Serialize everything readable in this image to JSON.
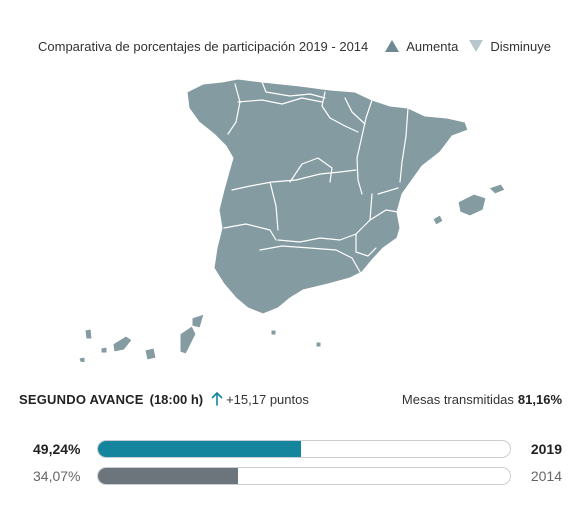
{
  "legend": {
    "title": "Comparativa de porcentajes de participación 2019 - 2014",
    "increase_label": "Aumenta",
    "decrease_label": "Disminuye",
    "increase_color": "#6f8891",
    "decrease_color": "#b8c7cd"
  },
  "map": {
    "fill_color": "#849ba1",
    "border_color": "#ffffff"
  },
  "summary": {
    "phase": "SEGUNDO AVANCE",
    "time": "(18:00 h)",
    "arrow_icon": "arrow-up-icon",
    "arrow_color": "#15859e",
    "delta": "+15,17 puntos",
    "mesas_label": "Mesas transmitidas",
    "mesas_value": "81,16%"
  },
  "bars": [
    {
      "year": "2019",
      "pct_label": "49,24%",
      "value": 49.24,
      "color": "#15849d"
    },
    {
      "year": "2014",
      "pct_label": "34,07%",
      "value": 34.07,
      "color": "#6c757c"
    }
  ]
}
